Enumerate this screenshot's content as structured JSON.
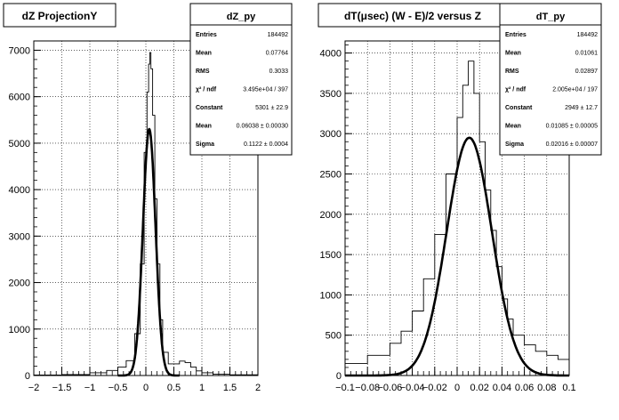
{
  "chart_data": [
    {
      "type": "histogram",
      "title": "dZ ProjectionY",
      "xlabel": "",
      "ylabel": "",
      "xlim": [
        -2,
        2
      ],
      "ylim": [
        0,
        7200
      ],
      "x_ticks": [
        "−2",
        "−1.5",
        "−1",
        "−0.5",
        "0",
        "0.5",
        "1",
        "1.5",
        "2"
      ],
      "y_ticks": [
        "0",
        "1000",
        "2000",
        "3000",
        "4000",
        "5000",
        "6000",
        "7000"
      ],
      "grid": true,
      "series": [
        {
          "kind": "histogram",
          "points": [
            [
              -2.0,
              10
            ],
            [
              -1.5,
              20
            ],
            [
              -1.0,
              60
            ],
            [
              -0.7,
              110
            ],
            [
              -0.5,
              180
            ],
            [
              -0.35,
              320
            ],
            [
              -0.2,
              900
            ],
            [
              -0.1,
              2400
            ],
            [
              -0.03,
              4800
            ],
            [
              0.02,
              6100
            ],
            [
              0.05,
              6700
            ],
            [
              0.07,
              6950
            ],
            [
              0.09,
              6600
            ],
            [
              0.12,
              5600
            ],
            [
              0.16,
              3800
            ],
            [
              0.2,
              2400
            ],
            [
              0.25,
              1200
            ],
            [
              0.3,
              500
            ],
            [
              0.4,
              250
            ],
            [
              0.5,
              250
            ],
            [
              0.6,
              310
            ],
            [
              0.7,
              280
            ],
            [
              0.8,
              180
            ],
            [
              0.9,
              100
            ],
            [
              1.0,
              60
            ],
            [
              1.2,
              30
            ],
            [
              1.5,
              15
            ],
            [
              2.0,
              5
            ]
          ]
        },
        {
          "kind": "gaussian-fit",
          "constant": 5301,
          "mean": 0.06038,
          "sigma": 0.1122,
          "range": [
            -0.5,
            0.6
          ]
        }
      ],
      "stats": {
        "title": "dZ_py",
        "rows": [
          {
            "name": "Entries",
            "value": "184492"
          },
          {
            "name": "Mean",
            "value": "0.07764"
          },
          {
            "name": "RMS",
            "value": "0.3033"
          },
          {
            "name": "χ² / ndf",
            "value": "3.495e+04 / 397"
          },
          {
            "name": "Constant",
            "value": "5301 ± 22.9"
          },
          {
            "name": "Mean",
            "value": "0.06038 ± 0.00030"
          },
          {
            "name": "Sigma",
            "value": "0.1122 ± 0.0004"
          }
        ]
      }
    },
    {
      "type": "histogram",
      "title": "dT(μsec) (W - E)/2 versus Z",
      "xlabel": "",
      "ylabel": "",
      "xlim": [
        -0.1,
        0.1
      ],
      "ylim": [
        0,
        4150
      ],
      "x_ticks": [
        "−0.1",
        "−0.08",
        "−0.06",
        "−0.04",
        "−0.02",
        "0",
        "0.02",
        "0.04",
        "0.06",
        "0.08",
        "0.1"
      ],
      "y_ticks": [
        "0",
        "500",
        "1000",
        "1500",
        "2000",
        "2500",
        "3000",
        "3500",
        "4000"
      ],
      "grid": true,
      "series": [
        {
          "kind": "histogram",
          "points": [
            [
              -0.1,
              150
            ],
            [
              -0.08,
              250
            ],
            [
              -0.06,
              400
            ],
            [
              -0.05,
              550
            ],
            [
              -0.04,
              800
            ],
            [
              -0.03,
              1200
            ],
            [
              -0.02,
              1750
            ],
            [
              -0.01,
              2500
            ],
            [
              0.0,
              3200
            ],
            [
              0.005,
              3600
            ],
            [
              0.01,
              3900
            ],
            [
              0.015,
              3500
            ],
            [
              0.02,
              2900
            ],
            [
              0.025,
              2300
            ],
            [
              0.03,
              1800
            ],
            [
              0.035,
              1350
            ],
            [
              0.04,
              950
            ],
            [
              0.045,
              700
            ],
            [
              0.05,
              500
            ],
            [
              0.06,
              380
            ],
            [
              0.07,
              300
            ],
            [
              0.08,
              250
            ],
            [
              0.09,
              200
            ],
            [
              0.1,
              170
            ]
          ]
        },
        {
          "kind": "gaussian-fit",
          "constant": 2949,
          "mean": 0.01085,
          "sigma": 0.02016,
          "range": [
            -0.1,
            0.1
          ]
        }
      ],
      "stats": {
        "title": "dT_py",
        "rows": [
          {
            "name": "Entries",
            "value": "184492"
          },
          {
            "name": "Mean",
            "value": "0.01061"
          },
          {
            "name": "RMS",
            "value": "0.02897"
          },
          {
            "name": "χ² / ndf",
            "value": "2.005e+04 / 197"
          },
          {
            "name": "Constant",
            "value": "2949 ± 12.7"
          },
          {
            "name": "Mean",
            "value": "0.01085 ± 0.00005"
          },
          {
            "name": "Sigma",
            "value": "0.02016 ± 0.00007"
          }
        ]
      }
    }
  ]
}
